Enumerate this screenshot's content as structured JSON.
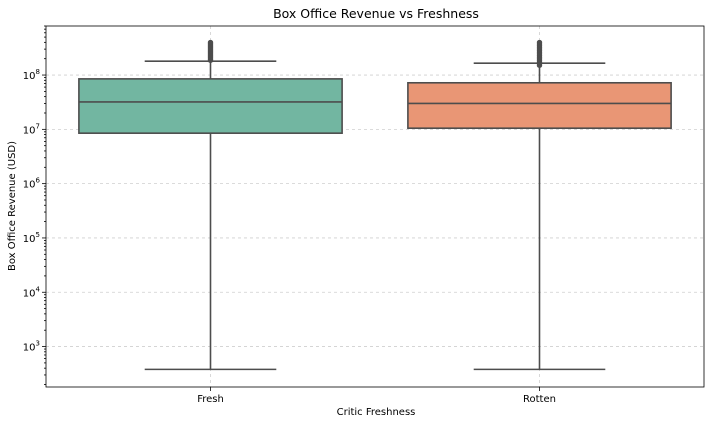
{
  "chart_data": {
    "type": "box",
    "title": "Box Office Revenue vs Freshness",
    "xlabel": "Critic Freshness",
    "ylabel": "Box Office Revenue (USD)",
    "yscale": "log",
    "ylim": [
      180,
      800000000
    ],
    "yticks": [
      {
        "value": 1000,
        "base": "10",
        "exp": "3"
      },
      {
        "value": 10000,
        "base": "10",
        "exp": "4"
      },
      {
        "value": 100000,
        "base": "10",
        "exp": "5"
      },
      {
        "value": 1000000,
        "base": "10",
        "exp": "6"
      },
      {
        "value": 10000000,
        "base": "10",
        "exp": "7"
      },
      {
        "value": 100000000,
        "base": "10",
        "exp": "8"
      }
    ],
    "grid": true,
    "categories": [
      "Fresh",
      "Rotten"
    ],
    "boxes": [
      {
        "category": "Fresh",
        "color": "#72b6a1",
        "whisker_low": 380,
        "q1": 8500000,
        "median": 32000000,
        "q3": 85000000,
        "whisker_high": 180000000,
        "outlier_range": [
          185000000,
          400000000
        ]
      },
      {
        "category": "Rotten",
        "color": "#e99675",
        "whisker_low": 380,
        "q1": 10500000,
        "median": 30000000,
        "q3": 72000000,
        "whisker_high": 165000000,
        "outlier_range": [
          150000000,
          400000000
        ]
      }
    ]
  }
}
